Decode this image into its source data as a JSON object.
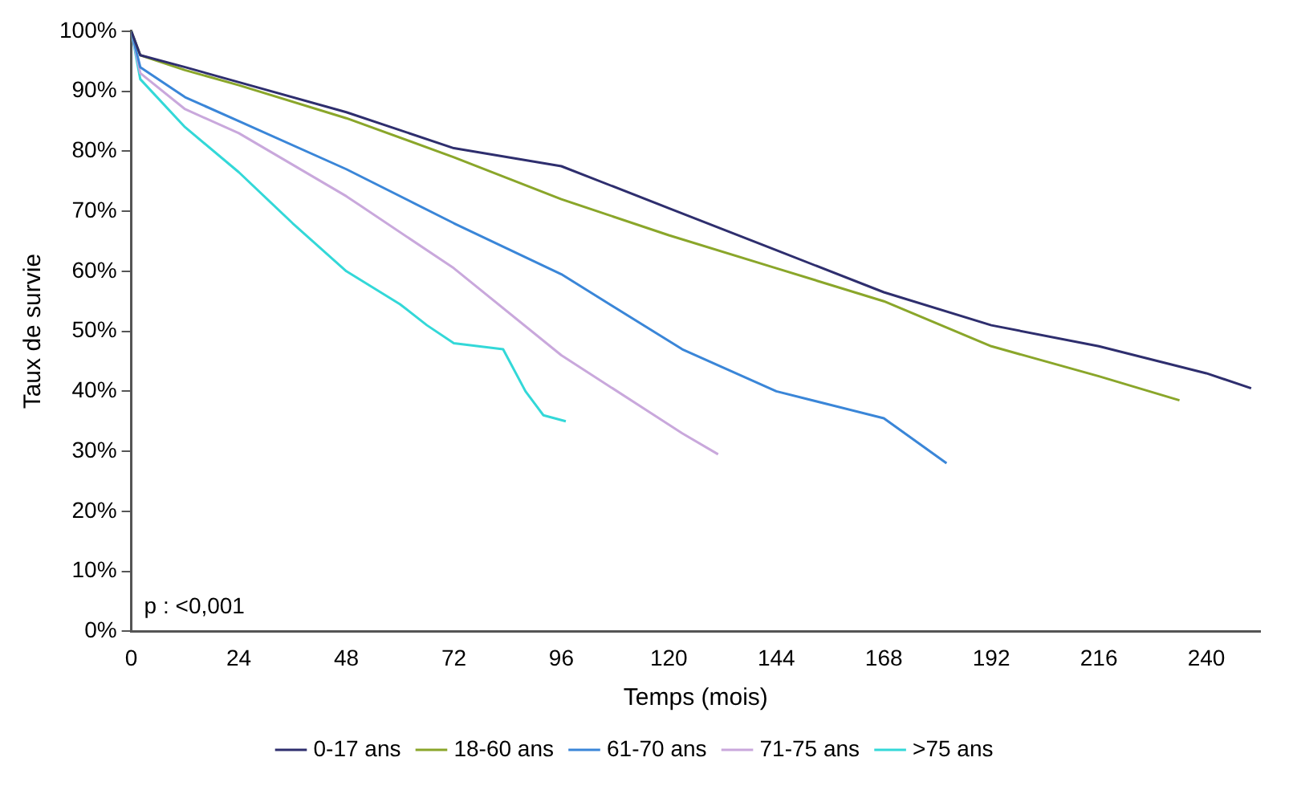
{
  "chart_data": {
    "type": "line",
    "xlabel": "Temps (mois)",
    "ylabel": "Taux de survie",
    "xlim": [
      0,
      252
    ],
    "xticks": [
      0,
      24,
      48,
      72,
      96,
      120,
      144,
      168,
      192,
      216,
      240
    ],
    "ylim": [
      0,
      100
    ],
    "yticks": [
      {
        "value": 0,
        "label": "0%"
      },
      {
        "value": 10,
        "label": "10%"
      },
      {
        "value": 20,
        "label": "20%"
      },
      {
        "value": 30,
        "label": "30%"
      },
      {
        "value": 40,
        "label": "40%"
      },
      {
        "value": 50,
        "label": "50%"
      },
      {
        "value": 60,
        "label": "60%"
      },
      {
        "value": 70,
        "label": "70%"
      },
      {
        "value": 80,
        "label": "80%"
      },
      {
        "value": 90,
        "label": "90%"
      },
      {
        "value": 100,
        "label": "100%"
      }
    ],
    "grid": false,
    "legend": "bottom",
    "marker": "none",
    "line_style": "solid",
    "annotations": [
      "p : <0,001"
    ],
    "series": [
      {
        "name": "0-17 ans",
        "color": "#2e2e6e",
        "x": [
          0,
          2,
          12,
          24,
          48,
          72,
          96,
          120,
          144,
          168,
          192,
          216,
          240,
          250
        ],
        "values": [
          100,
          96,
          94,
          91.5,
          86.5,
          80.5,
          77.5,
          70.5,
          63.5,
          56.5,
          51,
          47.5,
          43,
          40.5
        ]
      },
      {
        "name": "18-60 ans",
        "color": "#8aa62a",
        "x": [
          0,
          2,
          12,
          24,
          48,
          72,
          96,
          120,
          144,
          168,
          192,
          216,
          234
        ],
        "values": [
          100,
          96,
          93.5,
          91,
          85.5,
          79,
          72,
          66,
          60.5,
          55,
          47.5,
          42.5,
          38.5
        ]
      },
      {
        "name": "61-70 ans",
        "color": "#3a86d8",
        "x": [
          0,
          2,
          12,
          24,
          48,
          72,
          96,
          123,
          144,
          168,
          182
        ],
        "values": [
          100,
          94,
          89,
          85,
          77,
          68,
          59.5,
          47,
          40,
          35.5,
          28
        ]
      },
      {
        "name": "71-75 ans",
        "color": "#c9a8dc",
        "x": [
          0,
          2,
          12,
          24,
          48,
          72,
          96,
          123,
          131
        ],
        "values": [
          100,
          93,
          87,
          83,
          72.5,
          60.5,
          46,
          33,
          29.5
        ]
      },
      {
        "name": ">75 ans",
        "color": "#33d8d8",
        "x": [
          0,
          2,
          12,
          24,
          36,
          48,
          60,
          66,
          72,
          83,
          88,
          92,
          97
        ],
        "values": [
          100,
          92,
          84,
          76.5,
          68,
          60,
          54.5,
          51,
          48,
          47,
          40,
          36,
          35
        ]
      }
    ]
  }
}
